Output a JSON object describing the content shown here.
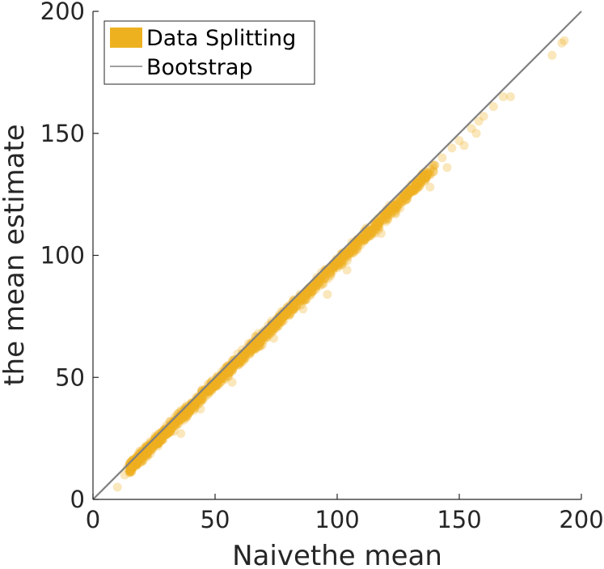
{
  "chart_data": {
    "type": "scatter",
    "title": "",
    "xlabel": "Naivethe mean",
    "ylabel": "the mean estimate",
    "xlim": [
      0,
      200
    ],
    "ylim": [
      0,
      200
    ],
    "xticks": [
      0,
      50,
      100,
      150,
      200
    ],
    "yticks": [
      0,
      50,
      100,
      150,
      200
    ],
    "x_tick_labels": [
      "0",
      "50",
      "100",
      "150",
      "200"
    ],
    "y_tick_labels": [
      "0",
      "50",
      "100",
      "150",
      "200"
    ],
    "grid": false,
    "legend_position": "top-left",
    "series": [
      {
        "name": "Data Splitting",
        "kind": "scatter",
        "color": "#EDB120",
        "opacity": 0.3,
        "trend": {
          "slope": 0.985,
          "intercept": -1.8
        },
        "x_range": [
          10,
          193
        ],
        "points": [
          [
            10,
            5
          ],
          [
            13,
            10
          ],
          [
            14,
            13
          ],
          [
            15,
            11
          ],
          [
            16,
            14
          ],
          [
            17,
            15
          ],
          [
            18,
            14
          ],
          [
            19,
            16
          ],
          [
            20,
            18
          ],
          [
            21,
            19
          ],
          [
            22,
            18
          ],
          [
            23,
            21
          ],
          [
            24,
            22
          ],
          [
            25,
            23
          ],
          [
            26,
            24
          ],
          [
            27,
            25
          ],
          [
            28,
            26
          ],
          [
            29,
            27
          ],
          [
            30,
            28
          ],
          [
            31,
            29
          ],
          [
            32,
            30
          ],
          [
            34,
            32
          ],
          [
            35,
            33
          ],
          [
            36,
            34
          ],
          [
            38,
            36
          ],
          [
            39,
            37
          ],
          [
            40,
            38
          ],
          [
            42,
            40
          ],
          [
            44,
            42
          ],
          [
            45,
            43
          ],
          [
            47,
            45
          ],
          [
            48,
            46
          ],
          [
            50,
            48
          ],
          [
            52,
            50
          ],
          [
            55,
            52
          ],
          [
            57,
            55
          ],
          [
            60,
            57
          ],
          [
            62,
            60
          ],
          [
            65,
            62
          ],
          [
            68,
            65
          ],
          [
            70,
            67
          ],
          [
            72,
            69
          ],
          [
            75,
            72
          ],
          [
            78,
            75
          ],
          [
            80,
            77
          ],
          [
            83,
            80
          ],
          [
            85,
            82
          ],
          [
            88,
            85
          ],
          [
            90,
            87
          ],
          [
            93,
            90
          ],
          [
            95,
            92
          ],
          [
            98,
            95
          ],
          [
            100,
            97
          ],
          [
            103,
            100
          ],
          [
            106,
            103
          ],
          [
            110,
            107
          ],
          [
            113,
            110
          ],
          [
            116,
            113
          ],
          [
            120,
            117
          ],
          [
            122,
            119
          ],
          [
            125,
            122
          ],
          [
            128,
            125
          ],
          [
            130,
            127
          ],
          [
            133,
            130
          ],
          [
            136,
            133
          ],
          [
            140,
            137
          ],
          [
            143,
            140
          ],
          [
            147,
            144
          ],
          [
            150,
            147
          ],
          [
            155,
            152
          ],
          [
            158,
            155
          ],
          [
            160,
            157
          ],
          [
            164,
            161
          ],
          [
            168,
            165
          ],
          [
            171,
            165
          ],
          [
            188,
            182
          ],
          [
            192,
            187
          ],
          [
            193,
            188
          ],
          [
            36,
            27
          ],
          [
            44,
            37
          ],
          [
            57,
            48
          ],
          [
            74,
            66
          ],
          [
            86,
            78
          ],
          [
            96,
            84
          ],
          [
            104,
            94
          ],
          [
            118,
            109
          ],
          [
            124,
            117
          ],
          [
            138,
            128
          ],
          [
            145,
            136
          ],
          [
            152,
            145
          ],
          [
            157,
            150
          ]
        ]
      },
      {
        "name": "Bootstrap",
        "kind": "line",
        "color": "#808080",
        "x": [
          0,
          200
        ],
        "y": [
          0,
          200
        ]
      }
    ]
  }
}
